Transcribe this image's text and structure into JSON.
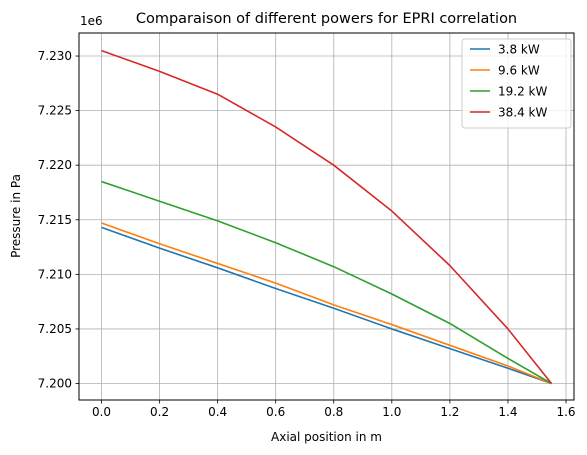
{
  "chart_data": {
    "type": "line",
    "title": "Comparaison of different powers for EPRI correlation",
    "xlabel": "Axial position in m",
    "ylabel": "Pressure in Pa",
    "y_offset_label": "1e6",
    "xlim": [
      -0.0775,
      1.6275
    ],
    "ylim": [
      7.19849,
      7.23211
    ],
    "x_ticks": [
      0.0,
      0.2,
      0.4,
      0.6,
      0.8,
      1.0,
      1.2,
      1.4,
      1.6
    ],
    "x_tick_labels": [
      "0.0",
      "0.2",
      "0.4",
      "0.6",
      "0.8",
      "1.0",
      "1.2",
      "1.4",
      "1.6"
    ],
    "y_ticks": [
      7.2,
      7.205,
      7.21,
      7.215,
      7.22,
      7.225,
      7.23
    ],
    "y_tick_labels": [
      "7.200",
      "7.205",
      "7.210",
      "7.215",
      "7.220",
      "7.225",
      "7.230"
    ],
    "grid": true,
    "legend_position": "top-right",
    "x": [
      0.0,
      0.2,
      0.4,
      0.6,
      0.8,
      1.0,
      1.2,
      1.4,
      1.55
    ],
    "series": [
      {
        "name": "3.8 kW",
        "color": "#1f77b4",
        "values": [
          7.2143,
          7.2124,
          7.2106,
          7.2087,
          7.2069,
          7.205,
          7.2032,
          7.2014,
          7.2
        ]
      },
      {
        "name": "9.6 kW",
        "color": "#ff7f0e",
        "values": [
          7.2147,
          7.2128,
          7.211,
          7.2092,
          7.2072,
          7.2054,
          7.2035,
          7.2016,
          7.2
        ]
      },
      {
        "name": "19.2 kW",
        "color": "#2ca02c",
        "values": [
          7.2185,
          7.2167,
          7.2149,
          7.2129,
          7.2107,
          7.2082,
          7.2055,
          7.2023,
          7.2
        ]
      },
      {
        "name": "38.4 kW",
        "color": "#d62728",
        "values": [
          7.2305,
          7.2286,
          7.2265,
          7.2235,
          7.22,
          7.2158,
          7.2108,
          7.205,
          7.2
        ]
      }
    ]
  }
}
